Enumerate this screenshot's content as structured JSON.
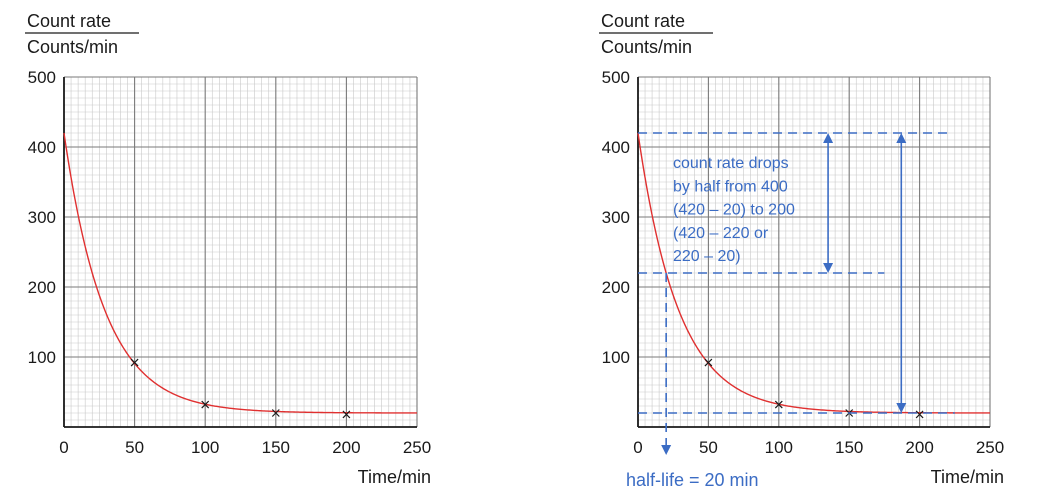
{
  "chart_data": [
    {
      "type": "line",
      "ylabel_top": "Count rate",
      "ylabel_bottom": "Counts/min",
      "xlabel": "Time/min",
      "xlim": [
        0,
        250
      ],
      "ylim": [
        0,
        500
      ],
      "x_ticks": [
        0,
        50,
        100,
        150,
        200,
        250
      ],
      "y_ticks": [
        100,
        200,
        300,
        400,
        500
      ],
      "grid": true,
      "curve": {
        "color": "#e03030",
        "start": 420,
        "background": 20,
        "half_life_min": 20,
        "x_end": 250
      },
      "points": [
        {
          "x": 50,
          "y": 92
        },
        {
          "x": 100,
          "y": 32
        },
        {
          "x": 150,
          "y": 20
        },
        {
          "x": 200,
          "y": 18
        }
      ]
    },
    {
      "type": "line",
      "ylabel_top": "Count rate",
      "ylabel_bottom": "Counts/min",
      "xlabel": "Time/min",
      "xlim": [
        0,
        250
      ],
      "ylim": [
        0,
        500
      ],
      "x_ticks": [
        0,
        50,
        100,
        150,
        200,
        250
      ],
      "y_ticks": [
        100,
        200,
        300,
        400,
        500
      ],
      "grid": true,
      "curve": {
        "color": "#e03030",
        "start": 420,
        "background": 20,
        "half_life_min": 20,
        "x_end": 250
      },
      "points": [
        {
          "x": 50,
          "y": 92
        },
        {
          "x": 100,
          "y": 32
        },
        {
          "x": 150,
          "y": 20
        },
        {
          "x": 200,
          "y": 18
        }
      ],
      "annotation_color": "#3b6cc4",
      "annotation_lines": [
        "count rate drops",
        "by half from 400",
        "(420 – 20) to 200",
        "(420 – 220 or",
        "220 – 20)"
      ],
      "half_life_label": "half-life = 20 min",
      "guides": {
        "top_y": 420,
        "mid_y": 220,
        "base_y": 20,
        "top_x_end": 222,
        "mid_x_end": 175,
        "base_x_end": 225,
        "half_life_x": 20,
        "arrow1_x": 135,
        "arrow2_x": 187
      }
    }
  ]
}
